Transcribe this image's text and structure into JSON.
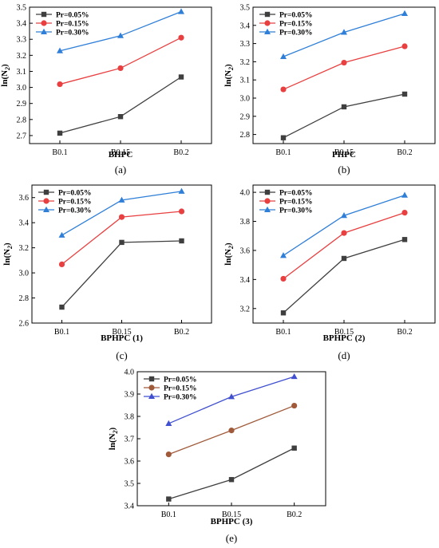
{
  "chart_data": [
    {
      "type": "line",
      "caption": "(a)",
      "xlabel": "BHPC",
      "ylabel_main": "ln(N",
      "ylabel_sub": "2",
      "ylabel_end": ")",
      "categories": [
        "B0.1",
        "B0.15",
        "B0.2"
      ],
      "ylim": [
        2.65,
        3.5
      ],
      "yticks": [
        2.7,
        2.8,
        2.9,
        3.0,
        3.1,
        3.2,
        3.3,
        3.4,
        3.5
      ],
      "legend_position": "top-left",
      "series": [
        {
          "name": "Pr=0.05%",
          "values": [
            2.715,
            2.818,
            3.065
          ],
          "color": "#3f3f3f",
          "marker": "square"
        },
        {
          "name": "Pr=0.15%",
          "values": [
            3.02,
            3.12,
            3.31
          ],
          "color": "#e84040",
          "marker": "circle"
        },
        {
          "name": "Pr=0.30%",
          "values": [
            3.228,
            3.322,
            3.472
          ],
          "color": "#2f7fd8",
          "marker": "triangle"
        }
      ]
    },
    {
      "type": "line",
      "caption": "(b)",
      "xlabel": "PHPC",
      "ylabel_main": "ln(N",
      "ylabel_sub": "2",
      "ylabel_end": ")",
      "categories": [
        "B0.1",
        "B0.15",
        "B0.2"
      ],
      "ylim": [
        2.75,
        3.5
      ],
      "yticks": [
        2.8,
        2.9,
        3.0,
        3.1,
        3.2,
        3.3,
        3.4,
        3.5
      ],
      "legend_position": "top-left",
      "series": [
        {
          "name": "Pr=0.05%",
          "values": [
            2.782,
            2.952,
            3.022
          ],
          "color": "#3f3f3f",
          "marker": "square"
        },
        {
          "name": "Pr=0.15%",
          "values": [
            3.048,
            3.195,
            3.285
          ],
          "color": "#e84040",
          "marker": "circle"
        },
        {
          "name": "Pr=0.30%",
          "values": [
            3.228,
            3.362,
            3.465
          ],
          "color": "#2f7fd8",
          "marker": "triangle"
        }
      ]
    },
    {
      "type": "line",
      "caption": "(c)",
      "xlabel": "BPHPC (1)",
      "ylabel_main": "ln(N",
      "ylabel_sub": "2",
      "ylabel_end": ")",
      "categories": [
        "B0.1",
        "B0.15",
        "B0.2"
      ],
      "ylim": [
        2.6,
        3.7
      ],
      "yticks": [
        2.6,
        2.8,
        3.0,
        3.2,
        3.4,
        3.6
      ],
      "legend_position": "top-left",
      "series": [
        {
          "name": "Pr=0.05%",
          "values": [
            2.727,
            3.243,
            3.255
          ],
          "color": "#3f3f3f",
          "marker": "square"
        },
        {
          "name": "Pr=0.15%",
          "values": [
            3.068,
            3.445,
            3.49
          ],
          "color": "#e84040",
          "marker": "circle"
        },
        {
          "name": "Pr=0.30%",
          "values": [
            3.3,
            3.58,
            3.65
          ],
          "color": "#2f7fd8",
          "marker": "triangle"
        }
      ]
    },
    {
      "type": "line",
      "caption": "(d)",
      "xlabel": "BPHPC (2)",
      "ylabel_main": "ln(N",
      "ylabel_sub": "2",
      "ylabel_end": ")",
      "categories": [
        "B0.1",
        "B0.15",
        "B0.2"
      ],
      "ylim": [
        3.1,
        4.05
      ],
      "yticks": [
        3.2,
        3.4,
        3.6,
        3.8,
        4.0
      ],
      "legend_position": "top-left",
      "series": [
        {
          "name": "Pr=0.05%",
          "values": [
            3.17,
            3.545,
            3.675
          ],
          "color": "#3f3f3f",
          "marker": "square"
        },
        {
          "name": "Pr=0.15%",
          "values": [
            3.405,
            3.72,
            3.86
          ],
          "color": "#e84040",
          "marker": "circle"
        },
        {
          "name": "Pr=0.30%",
          "values": [
            3.565,
            3.84,
            3.98
          ],
          "color": "#2f7fd8",
          "marker": "triangle"
        }
      ]
    },
    {
      "type": "line",
      "caption": "(e)",
      "xlabel": "BPHPC (3)",
      "ylabel_main": "ln(N",
      "ylabel_sub": "2",
      "ylabel_end": ")",
      "categories": [
        "B0.1",
        "B0.15",
        "B0.2"
      ],
      "ylim": [
        3.4,
        4.0
      ],
      "yticks": [
        3.4,
        3.5,
        3.6,
        3.7,
        3.8,
        3.9,
        4.0
      ],
      "legend_position": "top-left",
      "series": [
        {
          "name": "Pr=0.05%",
          "values": [
            3.43,
            3.517,
            3.658
          ],
          "color": "#3f3f3f",
          "marker": "square"
        },
        {
          "name": "Pr=0.15%",
          "values": [
            3.63,
            3.737,
            3.848
          ],
          "color": "#a05a3a",
          "marker": "circle"
        },
        {
          "name": "Pr=0.30%",
          "values": [
            3.768,
            3.888,
            3.978
          ],
          "color": "#4050d0",
          "marker": "triangle"
        }
      ]
    }
  ]
}
